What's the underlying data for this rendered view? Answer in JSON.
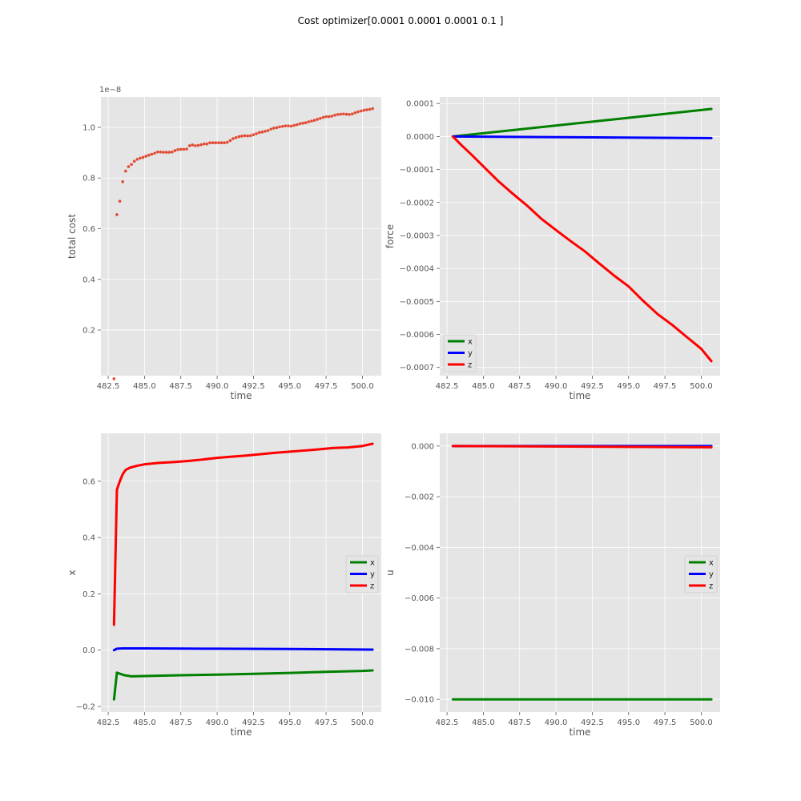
{
  "figure": {
    "suptitle": "Cost optimizer[0.0001 0.0001 0.0001 0.1   ]",
    "background": "#ffffff",
    "axes_facecolor": "#e5e5e5",
    "grid_color": "#ffffff"
  },
  "chart_data": [
    {
      "type": "scatter",
      "xlabel": "time",
      "ylabel": "total cost",
      "xlim": [
        482.0,
        501.3
      ],
      "ylim": [
        2e-10,
        1.12e-08
      ],
      "xticks": [
        482.5,
        485.0,
        487.5,
        490.0,
        492.5,
        495.0,
        497.5,
        500.0
      ],
      "xtick_labels": [
        "482.5",
        "485.0",
        "487.5",
        "490.0",
        "492.5",
        "495.0",
        "497.5",
        "500.0"
      ],
      "yticks": [
        0.2,
        0.4,
        0.6,
        0.8,
        1.0
      ],
      "ytick_labels": [
        "0.2",
        "0.4",
        "0.6",
        "0.8",
        "1.0"
      ],
      "offset_text": "1e−8",
      "grid": true,
      "legend": null,
      "color": "#e24a33",
      "series": [
        {
          "x": [
            482.9,
            483.1,
            483.3,
            483.5,
            483.7,
            483.9,
            484.1,
            484.3,
            484.5,
            484.7,
            484.9,
            485.1,
            485.3,
            485.5,
            485.7,
            485.9,
            486.1,
            486.3,
            486.5,
            486.7,
            486.9,
            487.1,
            487.3,
            487.5,
            487.7,
            487.9,
            488.1,
            488.3,
            488.5,
            488.7,
            488.9,
            489.1,
            489.3,
            489.5,
            489.7,
            489.9,
            490.1,
            490.3,
            490.5,
            490.7,
            490.9,
            491.1,
            491.3,
            491.5,
            491.7,
            491.9,
            492.1,
            492.3,
            492.5,
            492.7,
            492.9,
            493.1,
            493.3,
            493.5,
            493.7,
            493.9,
            494.1,
            494.3,
            494.5,
            494.7,
            494.9,
            495.1,
            495.3,
            495.5,
            495.7,
            495.9,
            496.1,
            496.3,
            496.5,
            496.7,
            496.9,
            497.1,
            497.3,
            497.5,
            497.7,
            497.9,
            498.1,
            498.3,
            498.5,
            498.7,
            498.9,
            499.1,
            499.3,
            499.5,
            499.7,
            499.9,
            500.1,
            500.3,
            500.5,
            500.7
          ],
          "y": [
            7.8e-11,
            6.555e-09,
            7.084e-09,
            7.854e-09,
            8.274e-09,
            8.448e-09,
            8.535e-09,
            8.66e-09,
            8.737e-09,
            8.785e-09,
            8.814e-09,
            8.862e-09,
            8.901e-09,
            8.939e-09,
            8.978e-09,
            9.026e-09,
            9.026e-09,
            9.016e-09,
            9.016e-09,
            9.016e-09,
            9.026e-09,
            9.084e-09,
            9.122e-09,
            9.132e-09,
            9.132e-09,
            9.142e-09,
            9.276e-09,
            9.305e-09,
            9.276e-09,
            9.286e-09,
            9.315e-09,
            9.344e-09,
            9.344e-09,
            9.392e-09,
            9.392e-09,
            9.392e-09,
            9.392e-09,
            9.392e-09,
            9.392e-09,
            9.411e-09,
            9.478e-09,
            9.555e-09,
            9.594e-09,
            9.632e-09,
            9.652e-09,
            9.671e-09,
            9.661e-09,
            9.671e-09,
            9.709e-09,
            9.748e-09,
            9.796e-09,
            9.815e-09,
            9.844e-09,
            9.873e-09,
            9.931e-09,
            9.969e-09,
            9.988e-09,
            1.0017e-08,
            1.0037e-08,
            1.0056e-08,
            1.0056e-08,
            1.0046e-08,
            1.0075e-08,
            1.0104e-08,
            1.0142e-08,
            1.0162e-08,
            1.0181e-08,
            1.0219e-08,
            1.0248e-08,
            1.0277e-08,
            1.0316e-08,
            1.0354e-08,
            1.0393e-08,
            1.0421e-08,
            1.0421e-08,
            1.0441e-08,
            1.0479e-08,
            1.0508e-08,
            1.0518e-08,
            1.0528e-08,
            1.0518e-08,
            1.0508e-08,
            1.0528e-08,
            1.0575e-08,
            1.0614e-08,
            1.0643e-08,
            1.0672e-08,
            1.0691e-08,
            1.071e-08,
            1.0739e-08
          ]
        }
      ]
    },
    {
      "type": "line",
      "xlabel": "time",
      "ylabel": "force",
      "xlim": [
        482.0,
        501.3
      ],
      "ylim": [
        -0.000725,
        0.00012
      ],
      "xticks": [
        482.5,
        485.0,
        487.5,
        490.0,
        492.5,
        495.0,
        497.5,
        500.0
      ],
      "xtick_labels": [
        "482.5",
        "485.0",
        "487.5",
        "490.0",
        "492.5",
        "495.0",
        "497.5",
        "500.0"
      ],
      "yticks": [
        0.0001,
        0.0,
        -0.0001,
        -0.0002,
        -0.0003,
        -0.0004,
        -0.0005,
        -0.0006,
        -0.0007
      ],
      "ytick_labels": [
        "0.0001",
        "0.0000",
        "−0.0001",
        "−0.0002",
        "−0.0003",
        "−0.0004",
        "−0.0005",
        "−0.0006",
        "−0.0007"
      ],
      "grid": true,
      "legend": "bottom-left",
      "series": [
        {
          "name": "x",
          "color": "#008000",
          "x": [
            482.9,
            500.7
          ],
          "y": [
            0.0,
            8.35e-05
          ]
        },
        {
          "name": "y",
          "color": "#0000ff",
          "x": [
            482.9,
            500.7
          ],
          "y": [
            0.0,
            -4.8e-06
          ]
        },
        {
          "name": "z",
          "color": "#ff0000",
          "x": [
            482.9,
            483.5,
            484.2,
            485.0,
            486.0,
            487.0,
            488.0,
            489.0,
            490.0,
            491.0,
            492.0,
            493.0,
            494.0,
            495.0,
            496.0,
            497.0,
            498.0,
            499.0,
            500.0,
            500.7
          ],
          "y": [
            0.0,
            -2.65e-05,
            -5.55e-05,
            -9.05e-05,
            -0.000134,
            -0.0001725,
            -0.000209,
            -0.0002495,
            -0.0002835,
            -0.0003165,
            -0.0003485,
            -0.0003855,
            -0.0004215,
            -0.0004545,
            -0.000498,
            -0.0005385,
            -0.000571,
            -0.0006075,
            -0.0006435,
            -0.000681
          ]
        }
      ]
    },
    {
      "type": "line",
      "xlabel": "time",
      "ylabel": "x",
      "xlim": [
        482.0,
        501.3
      ],
      "ylim": [
        -0.22,
        0.77
      ],
      "xticks": [
        482.5,
        485.0,
        487.5,
        490.0,
        492.5,
        495.0,
        497.5,
        500.0
      ],
      "xtick_labels": [
        "482.5",
        "485.0",
        "487.5",
        "490.0",
        "492.5",
        "495.0",
        "497.5",
        "500.0"
      ],
      "yticks": [
        -0.2,
        0.0,
        0.2,
        0.4,
        0.6
      ],
      "ytick_labels": [
        "−0.2",
        "0.0",
        "0.2",
        "0.4",
        "0.6"
      ],
      "grid": true,
      "legend": "center-right",
      "series": [
        {
          "name": "x",
          "color": "#008000",
          "x": [
            482.9,
            483.1,
            483.6,
            484.1,
            485.0,
            487.5,
            490.0,
            492.5,
            495.0,
            497.5,
            500.0,
            500.7
          ],
          "y": [
            -0.175,
            -0.08,
            -0.089,
            -0.093,
            -0.092,
            -0.089,
            -0.087,
            -0.084,
            -0.081,
            -0.077,
            -0.074,
            -0.072
          ]
        },
        {
          "name": "y",
          "color": "#0000ff",
          "x": [
            482.9,
            483.1,
            483.5,
            485.0,
            490.0,
            495.0,
            500.7
          ],
          "y": [
            0.0,
            0.005,
            0.006,
            0.006,
            0.005,
            0.004,
            0.002
          ]
        },
        {
          "name": "z",
          "color": "#ff0000",
          "x": [
            482.9,
            483.1,
            483.3,
            483.5,
            483.7,
            484.0,
            484.5,
            485.0,
            486.0,
            487.0,
            488.0,
            489.0,
            490.0,
            491.0,
            492.0,
            493.0,
            494.0,
            495.0,
            496.0,
            497.0,
            498.0,
            499.0,
            500.0,
            500.7
          ],
          "y": [
            0.09,
            0.57,
            0.6,
            0.625,
            0.64,
            0.648,
            0.655,
            0.66,
            0.665,
            0.668,
            0.672,
            0.677,
            0.683,
            0.687,
            0.691,
            0.696,
            0.701,
            0.705,
            0.709,
            0.713,
            0.718,
            0.72,
            0.725,
            0.733
          ]
        }
      ]
    },
    {
      "type": "line",
      "xlabel": "time",
      "ylabel": "u",
      "xlim": [
        482.0,
        501.3
      ],
      "ylim": [
        -0.0105,
        0.0005
      ],
      "xticks": [
        482.5,
        485.0,
        487.5,
        490.0,
        492.5,
        495.0,
        497.5,
        500.0
      ],
      "xtick_labels": [
        "482.5",
        "485.0",
        "487.5",
        "490.0",
        "492.5",
        "495.0",
        "497.5",
        "500.0"
      ],
      "yticks": [
        0.0,
        -0.002,
        -0.004,
        -0.006,
        -0.008,
        -0.01
      ],
      "ytick_labels": [
        "0.000",
        "−0.002",
        "−0.004",
        "−0.006",
        "−0.008",
        "−0.010"
      ],
      "grid": true,
      "legend": "center-right",
      "series": [
        {
          "name": "x",
          "color": "#008000",
          "x": [
            482.9,
            500.7
          ],
          "y": [
            -0.01,
            -0.01
          ]
        },
        {
          "name": "y",
          "color": "#0000ff",
          "x": [
            482.9,
            500.7
          ],
          "y": [
            0.0,
            0.0
          ]
        },
        {
          "name": "z",
          "color": "#ff0000",
          "x": [
            482.9,
            500.7
          ],
          "y": [
            0.0,
            -5e-05
          ]
        }
      ]
    }
  ]
}
